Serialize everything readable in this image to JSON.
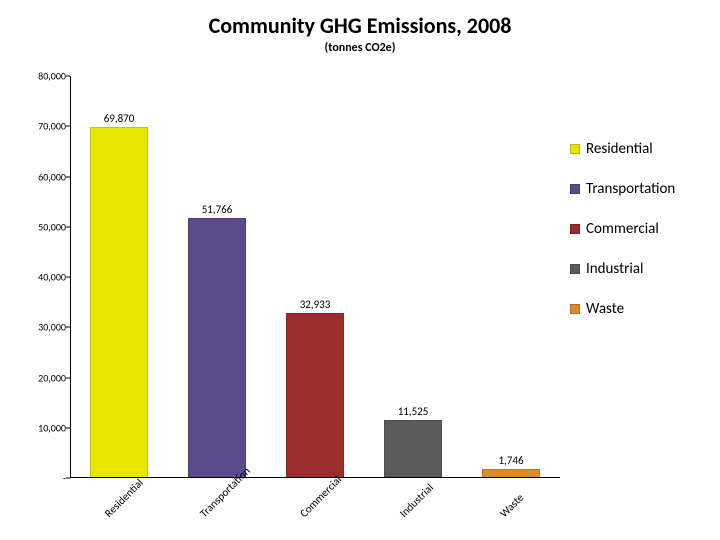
{
  "title": "Community GHG Emissions, 2008",
  "subtitle": "(tonnes CO2e)",
  "title_fontsize": 22,
  "subtitle_fontsize": 12,
  "background_color": "#ffffff",
  "chart": {
    "type": "bar",
    "ylim": [
      0,
      80000
    ],
    "ytick_step": 10000,
    "ytick_labels": [
      "-",
      "10,000",
      "20,000",
      "30,000",
      "40,000",
      "50,000",
      "60,000",
      "70,000",
      "80,000"
    ],
    "bar_width_pct": 60,
    "axis_color": "#000000",
    "tick_fontsize": 10,
    "value_label_fontsize": 11,
    "cat_label_fontsize": 11,
    "cat_label_rotation_deg": -45,
    "categories": [
      {
        "label": "Residential",
        "value": 69870,
        "value_label": "69,870",
        "color": "#e6e600"
      },
      {
        "label": "Transportation",
        "value": 51766,
        "value_label": "51,766",
        "color": "#5c4a8a"
      },
      {
        "label": "Commercial",
        "value": 32933,
        "value_label": "32,933",
        "color": "#9b2d2d"
      },
      {
        "label": "Industrial",
        "value": 11525,
        "value_label": "11,525",
        "color": "#5a5a5a"
      },
      {
        "label": "Waste",
        "value": 1746,
        "value_label": "1,746",
        "color": "#e08a2e"
      }
    ]
  },
  "legend": {
    "fontsize": 15,
    "items": [
      {
        "label": "Residential",
        "color": "#e6e600"
      },
      {
        "label": "Transportation",
        "color": "#5c4a8a"
      },
      {
        "label": "Commercial",
        "color": "#9b2d2d"
      },
      {
        "label": "Industrial",
        "color": "#5a5a5a"
      },
      {
        "label": "Waste",
        "color": "#e08a2e"
      }
    ]
  }
}
